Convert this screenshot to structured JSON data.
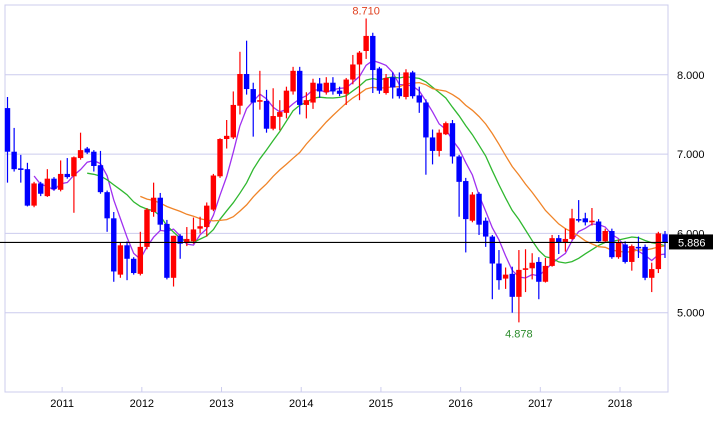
{
  "chart_data": {
    "type": "candlestick",
    "interval": "monthly",
    "x_start": "2010-05",
    "x_end": "2018-08",
    "x_tick_labels": [
      "2011",
      "2012",
      "2013",
      "2014",
      "2015",
      "2016",
      "2017",
      "2018"
    ],
    "y_tick_values": [
      5,
      6,
      7,
      8
    ],
    "y_tick_labels": [
      "5.000",
      "6.000",
      "7.000",
      "8.000"
    ],
    "ylim": [
      4.0,
      8.88
    ],
    "grid": "horizontal",
    "ohlc": [
      [
        7.58,
        7.72,
        6.64,
        7.03
      ],
      [
        7.03,
        7.33,
        6.78,
        6.81
      ],
      [
        6.82,
        6.99,
        6.64,
        6.8
      ],
      [
        6.81,
        6.89,
        6.34,
        6.35
      ],
      [
        6.35,
        6.65,
        6.33,
        6.63
      ],
      [
        6.63,
        6.65,
        6.47,
        6.5
      ],
      [
        6.47,
        6.81,
        6.46,
        6.69
      ],
      [
        6.69,
        6.71,
        6.54,
        6.56
      ],
      [
        6.55,
        6.92,
        6.53,
        6.75
      ],
      [
        6.75,
        6.95,
        6.69,
        6.71
      ],
      [
        6.72,
        6.97,
        6.26,
        6.96
      ],
      [
        6.95,
        7.27,
        6.93,
        7.05
      ],
      [
        7.07,
        7.09,
        7.0,
        7.02
      ],
      [
        7.03,
        7.05,
        6.78,
        6.85
      ],
      [
        6.86,
        7.04,
        6.5,
        6.52
      ],
      [
        6.52,
        6.54,
        6.02,
        6.19
      ],
      [
        6.19,
        6.27,
        5.39,
        5.52
      ],
      [
        5.48,
        5.89,
        5.44,
        5.85
      ],
      [
        5.85,
        5.9,
        5.41,
        5.68
      ],
      [
        5.68,
        5.7,
        5.48,
        5.5
      ],
      [
        5.49,
        6.02,
        5.47,
        5.83
      ],
      [
        5.83,
        6.32,
        5.8,
        6.3
      ],
      [
        6.27,
        6.64,
        6.21,
        6.45
      ],
      [
        6.45,
        6.51,
        6.04,
        6.11
      ],
      [
        6.12,
        6.17,
        5.42,
        5.44
      ],
      [
        5.44,
        5.97,
        5.33,
        5.97
      ],
      [
        5.97,
        5.99,
        5.68,
        5.87
      ],
      [
        5.88,
        6.08,
        5.84,
        5.93
      ],
      [
        5.9,
        6.2,
        5.87,
        6.05
      ],
      [
        6.06,
        6.21,
        6.0,
        6.09
      ],
      [
        6.08,
        6.39,
        5.96,
        6.35
      ],
      [
        6.3,
        6.75,
        6.28,
        6.73
      ],
      [
        6.72,
        7.2,
        6.7,
        7.19
      ],
      [
        7.19,
        7.43,
        7.07,
        7.23
      ],
      [
        7.21,
        7.79,
        7.19,
        7.62
      ],
      [
        7.61,
        8.29,
        7.5,
        8.01
      ],
      [
        8.01,
        8.43,
        7.75,
        7.82
      ],
      [
        7.82,
        7.9,
        7.22,
        7.65
      ],
      [
        7.66,
        8.05,
        7.56,
        7.68
      ],
      [
        7.67,
        7.81,
        7.27,
        7.32
      ],
      [
        7.32,
        7.83,
        7.3,
        7.48
      ],
      [
        7.47,
        7.68,
        7.3,
        7.53
      ],
      [
        7.52,
        7.85,
        7.45,
        7.8
      ],
      [
        7.79,
        8.1,
        7.75,
        8.05
      ],
      [
        8.05,
        8.1,
        7.5,
        7.62
      ],
      [
        7.62,
        7.78,
        7.45,
        7.68
      ],
      [
        7.65,
        7.95,
        7.57,
        7.9
      ],
      [
        7.89,
        7.96,
        7.71,
        7.79
      ],
      [
        7.78,
        7.97,
        7.75,
        7.9
      ],
      [
        7.9,
        7.97,
        7.75,
        7.79
      ],
      [
        7.8,
        7.85,
        7.73,
        7.76
      ],
      [
        7.76,
        7.96,
        7.62,
        7.94
      ],
      [
        7.94,
        8.25,
        7.88,
        8.13
      ],
      [
        8.13,
        8.3,
        7.68,
        8.28
      ],
      [
        8.3,
        8.71,
        8.2,
        8.49
      ],
      [
        8.49,
        8.53,
        7.77,
        8.06
      ],
      [
        8.08,
        8.1,
        7.76,
        7.8
      ],
      [
        7.77,
        8.01,
        7.75,
        7.96
      ],
      [
        7.97,
        8.03,
        7.7,
        7.84
      ],
      [
        7.83,
        8.03,
        7.7,
        7.73
      ],
      [
        7.72,
        8.07,
        7.69,
        8.03
      ],
      [
        8.03,
        8.05,
        7.7,
        7.73
      ],
      [
        7.74,
        7.85,
        7.52,
        7.65
      ],
      [
        7.65,
        7.69,
        6.74,
        7.21
      ],
      [
        7.21,
        7.31,
        6.87,
        7.04
      ],
      [
        7.04,
        7.31,
        6.97,
        7.27
      ],
      [
        7.25,
        7.41,
        7.24,
        7.39
      ],
      [
        7.39,
        7.43,
        6.88,
        6.97
      ],
      [
        6.97,
        6.99,
        6.21,
        6.65
      ],
      [
        6.66,
        6.7,
        5.76,
        6.18
      ],
      [
        6.16,
        6.52,
        6.14,
        6.49
      ],
      [
        6.5,
        6.52,
        5.98,
        6.11
      ],
      [
        6.16,
        6.2,
        5.83,
        5.96
      ],
      [
        5.96,
        5.98,
        5.17,
        5.62
      ],
      [
        5.62,
        5.79,
        5.29,
        5.41
      ],
      [
        5.43,
        5.57,
        5.3,
        5.48
      ],
      [
        5.49,
        5.58,
        5.0,
        5.2
      ],
      [
        5.2,
        5.79,
        4.878,
        5.54
      ],
      [
        5.54,
        5.8,
        5.26,
        5.56
      ],
      [
        5.56,
        5.75,
        5.42,
        5.63
      ],
      [
        5.64,
        5.7,
        5.17,
        5.39
      ],
      [
        5.39,
        5.69,
        5.38,
        5.59
      ],
      [
        5.59,
        5.98,
        5.58,
        5.94
      ],
      [
        5.94,
        5.98,
        5.74,
        5.89
      ],
      [
        5.89,
        6.06,
        5.77,
        5.93
      ],
      [
        5.93,
        6.31,
        5.92,
        6.19
      ],
      [
        6.18,
        6.42,
        6.14,
        6.17
      ],
      [
        6.19,
        6.26,
        6.1,
        6.14
      ],
      [
        6.14,
        6.32,
        6.1,
        6.16
      ],
      [
        6.15,
        6.18,
        5.88,
        5.9
      ],
      [
        5.9,
        6.06,
        5.88,
        6.03
      ],
      [
        6.03,
        6.06,
        5.68,
        5.7
      ],
      [
        5.7,
        5.92,
        5.68,
        5.88
      ],
      [
        5.86,
        5.9,
        5.62,
        5.64
      ],
      [
        5.64,
        5.86,
        5.53,
        5.84
      ],
      [
        5.83,
        5.96,
        5.69,
        5.82
      ],
      [
        5.83,
        5.86,
        5.41,
        5.44
      ],
      [
        5.44,
        5.63,
        5.26,
        5.55
      ],
      [
        5.55,
        6.02,
        5.5,
        6.0
      ],
      [
        5.99,
        6.03,
        5.69,
        5.886
      ]
    ],
    "colors": {
      "up": "#ff0000",
      "down": "#0000ff",
      "grid": "#ccccee",
      "ma_short": "#a030f0",
      "ma_mid": "#30b830",
      "ma_long": "#f08428"
    },
    "annotations": {
      "high": {
        "value": 8.71,
        "label": "8.710",
        "color": "#e04020"
      },
      "low": {
        "value": 4.878,
        "label": "4.878",
        "color": "#2c8c2c"
      }
    },
    "last_price": {
      "value": 5.886,
      "label": "5.886"
    }
  }
}
